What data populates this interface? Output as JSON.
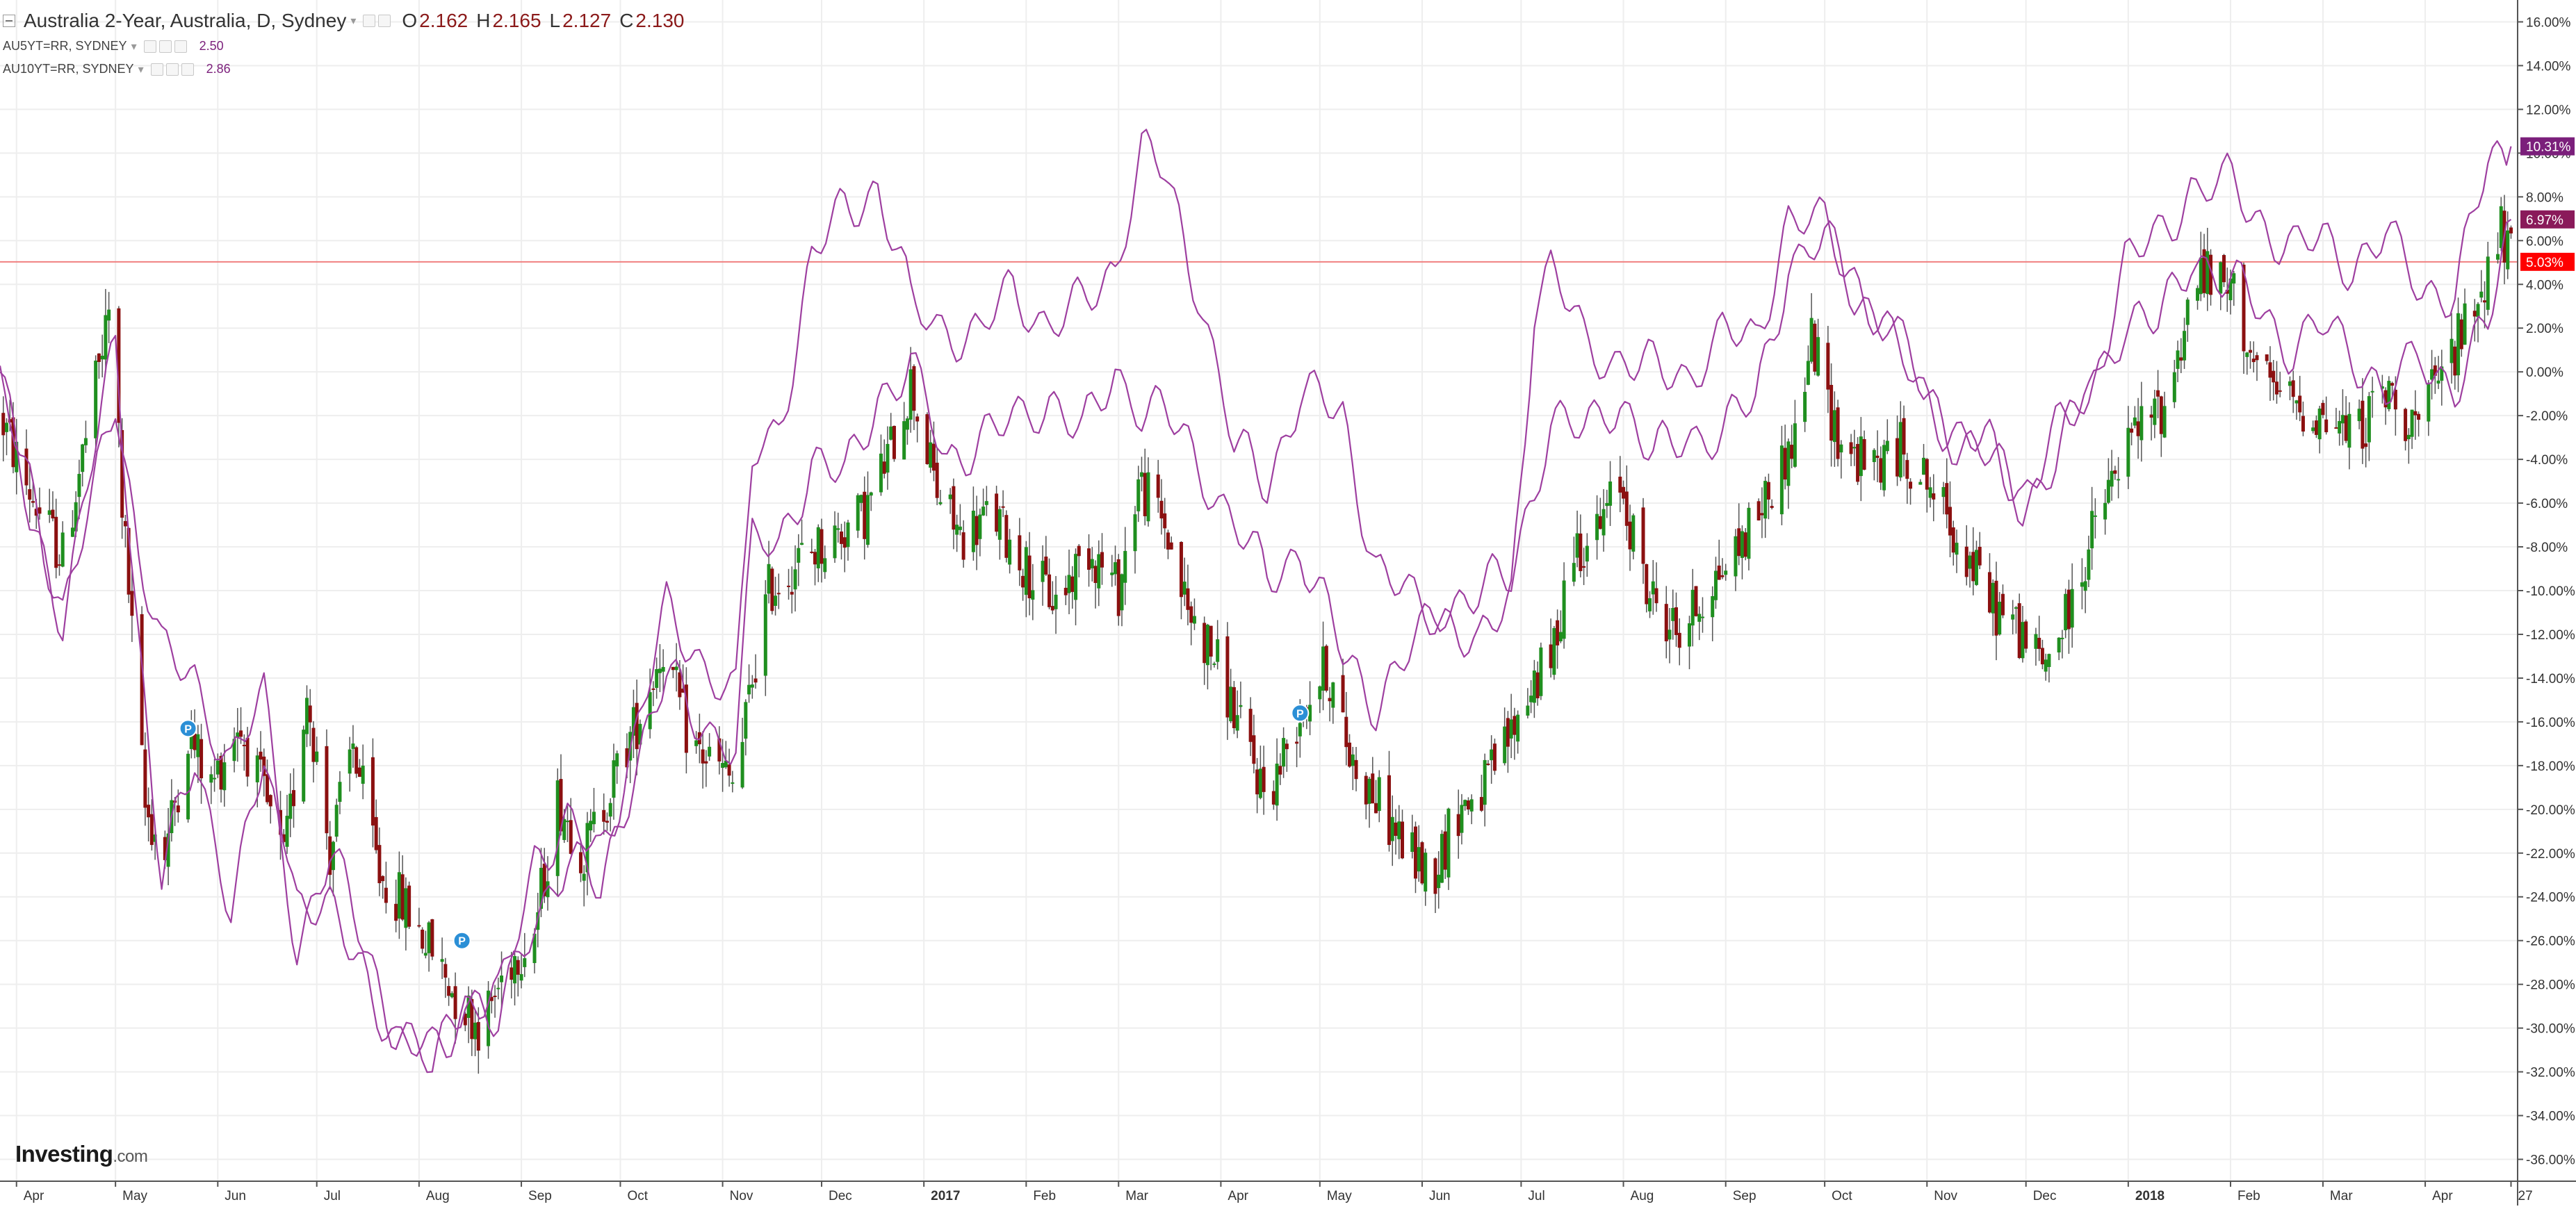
{
  "legend": {
    "main_title": "Australia 2-Year, Australia, D, Sydney",
    "open_key": "O",
    "open_val": "2.162",
    "high_key": "H",
    "high_val": "2.165",
    "low_key": "L",
    "low_val": "2.127",
    "close_key": "C",
    "close_val": "2.130",
    "sub1_title": "AU5YT=RR, SYDNEY",
    "sub1_val": "2.50",
    "sub2_title": "AU10YT=RR, SYDNEY",
    "sub2_val": "2.86"
  },
  "branding": {
    "logo_main": "Investing",
    "logo_suffix": ".com"
  },
  "colors": {
    "up": "#1f8f1f",
    "down": "#8b1010",
    "compare": "#9e3fa0",
    "label_top": "#7b1f7b",
    "label_mid": "#8a1a5a",
    "label_price": "#ff0000",
    "price_line": "#f08080",
    "grid": "#eeeeee",
    "axis_text": "#333333"
  },
  "icons": {
    "event_marker": "p-bubble-icon"
  },
  "chart_data": {
    "type": "line",
    "title": "Australia 2-Year, Australia, D, Sydney",
    "xlabel": "",
    "ylabel": "",
    "ylim": [
      -37,
      17
    ],
    "y_unit": "%",
    "grid": true,
    "x_tick_labels": [
      "Apr",
      "May",
      "Jun",
      "Jul",
      "Aug",
      "Sep",
      "Oct",
      "Nov",
      "Dec",
      "2017",
      "Feb",
      "Mar",
      "Apr",
      "May",
      "Jun",
      "Jul",
      "Aug",
      "Sep",
      "Oct",
      "Nov",
      "Dec",
      "2018",
      "Feb",
      "Mar",
      "Apr",
      "27"
    ],
    "x_tick_dates": [
      "2016-04-01",
      "2016-05-01",
      "2016-06-01",
      "2016-07-01",
      "2016-08-01",
      "2016-09-01",
      "2016-10-01",
      "2016-11-01",
      "2016-12-01",
      "2017-01-01",
      "2017-02-01",
      "2017-03-01",
      "2017-04-01",
      "2017-05-01",
      "2017-06-01",
      "2017-07-01",
      "2017-08-01",
      "2017-09-01",
      "2017-10-01",
      "2017-11-01",
      "2017-12-01",
      "2018-01-01",
      "2018-02-01",
      "2018-03-01",
      "2018-04-01",
      "2018-04-27"
    ],
    "y_ticks": [
      16,
      14,
      12,
      10,
      8,
      6,
      4,
      2,
      0,
      -2,
      -4,
      -6,
      -8,
      -10,
      -12,
      -14,
      -16,
      -18,
      -20,
      -22,
      -24,
      -26,
      -28,
      -30,
      -32,
      -34,
      -36
    ],
    "y_tick_labels": [
      "16.00%",
      "14.00%",
      "12.00%",
      "10.00%",
      "8.00%",
      "6.00%",
      "4.00%",
      "2.00%",
      "0.00%",
      "-2.00%",
      "-4.00%",
      "-6.00%",
      "-8.00%",
      "-10.00%",
      "-12.00%",
      "-14.00%",
      "-16.00%",
      "-18.00%",
      "-20.00%",
      "-22.00%",
      "-24.00%",
      "-26.00%",
      "-28.00%",
      "-30.00%",
      "-32.00%",
      "-34.00%",
      "-36.00%"
    ],
    "last_value_labels": [
      {
        "value": 10.31,
        "text": "10.31%",
        "color": "#7b1f7b"
      },
      {
        "value": 6.97,
        "text": "6.97%",
        "color": "#8a1a5a"
      },
      {
        "value": 5.03,
        "text": "5.03%",
        "color": "#ff0000"
      }
    ],
    "price_line_value": 5.03,
    "event_markers": [
      {
        "date": "2016-05-23",
        "value": -16.3,
        "label": "P"
      },
      {
        "date": "2016-08-14",
        "value": -26.0,
        "label": "P"
      },
      {
        "date": "2017-04-25",
        "value": -15.6,
        "label": "P"
      }
    ],
    "candles_series": {
      "name": "Australia 2-Year",
      "anchors": [
        [
          "2016-03-27",
          -2.0
        ],
        [
          "2016-04-05",
          -5.5
        ],
        [
          "2016-04-15",
          -8.5
        ],
        [
          "2016-04-24",
          -1.5
        ],
        [
          "2016-04-30",
          3.5
        ],
        [
          "2016-05-03",
          -6.0
        ],
        [
          "2016-05-10",
          -20.0
        ],
        [
          "2016-05-16",
          -22.0
        ],
        [
          "2016-05-23",
          -16.5
        ],
        [
          "2016-05-30",
          -19.0
        ],
        [
          "2016-06-07",
          -16.0
        ],
        [
          "2016-06-14",
          -19.0
        ],
        [
          "2016-06-21",
          -22.5
        ],
        [
          "2016-06-28",
          -14.5
        ],
        [
          "2016-07-05",
          -22.0
        ],
        [
          "2016-07-12",
          -17.0
        ],
        [
          "2016-07-20",
          -23.0
        ],
        [
          "2016-07-28",
          -24.5
        ],
        [
          "2016-08-05",
          -26.5
        ],
        [
          "2016-08-12",
          -28.5
        ],
        [
          "2016-08-20",
          -30.0
        ],
        [
          "2016-08-28",
          -27.0
        ],
        [
          "2016-09-05",
          -25.5
        ],
        [
          "2016-09-12",
          -19.5
        ],
        [
          "2016-09-20",
          -22.0
        ],
        [
          "2016-09-28",
          -19.0
        ],
        [
          "2016-10-06",
          -16.0
        ],
        [
          "2016-10-14",
          -12.5
        ],
        [
          "2016-10-22",
          -17.0
        ],
        [
          "2016-10-30",
          -18.0
        ],
        [
          "2016-11-05",
          -19.0
        ],
        [
          "2016-11-10",
          -14.0
        ],
        [
          "2016-11-15",
          -10.0
        ],
        [
          "2016-11-25",
          -8.5
        ],
        [
          "2016-12-05",
          -7.5
        ],
        [
          "2016-12-14",
          -6.5
        ],
        [
          "2016-12-22",
          -3.5
        ],
        [
          "2016-12-28",
          -0.5
        ],
        [
          "2017-01-05",
          -5.5
        ],
        [
          "2017-01-12",
          -7.5
        ],
        [
          "2017-01-22",
          -6.5
        ],
        [
          "2017-02-01",
          -9.0
        ],
        [
          "2017-02-10",
          -10.5
        ],
        [
          "2017-02-20",
          -8.0
        ],
        [
          "2017-03-01",
          -10.0
        ],
        [
          "2017-03-07",
          -5.0
        ],
        [
          "2017-03-15",
          -7.0
        ],
        [
          "2017-03-22",
          -11.0
        ],
        [
          "2017-03-30",
          -13.0
        ],
        [
          "2017-04-06",
          -16.0
        ],
        [
          "2017-04-15",
          -19.5
        ],
        [
          "2017-04-25",
          -15.5
        ],
        [
          "2017-05-03",
          -13.5
        ],
        [
          "2017-05-10",
          -17.5
        ],
        [
          "2017-05-20",
          -20.0
        ],
        [
          "2017-05-28",
          -22.0
        ],
        [
          "2017-06-04",
          -23.0
        ],
        [
          "2017-06-12",
          -20.0
        ],
        [
          "2017-06-20",
          -19.0
        ],
        [
          "2017-06-28",
          -16.5
        ],
        [
          "2017-07-05",
          -14.0
        ],
        [
          "2017-07-10",
          -13.5
        ],
        [
          "2017-07-16",
          -8.0
        ],
        [
          "2017-07-24",
          -7.5
        ],
        [
          "2017-07-31",
          -5.0
        ],
        [
          "2017-08-08",
          -10.0
        ],
        [
          "2017-08-18",
          -12.0
        ],
        [
          "2017-08-26",
          -10.0
        ],
        [
          "2017-09-05",
          -8.0
        ],
        [
          "2017-09-14",
          -5.5
        ],
        [
          "2017-09-22",
          -3.0
        ],
        [
          "2017-09-27",
          1.5
        ],
        [
          "2017-10-05",
          -3.0
        ],
        [
          "2017-10-14",
          -4.5
        ],
        [
          "2017-10-24",
          -3.5
        ],
        [
          "2017-11-01",
          -5.0
        ],
        [
          "2017-11-10",
          -7.5
        ],
        [
          "2017-11-20",
          -10.5
        ],
        [
          "2017-11-30",
          -12.0
        ],
        [
          "2017-12-06",
          -13.5
        ],
        [
          "2017-12-14",
          -11.0
        ],
        [
          "2017-12-22",
          -7.0
        ],
        [
          "2018-01-02",
          -3.0
        ],
        [
          "2018-01-12",
          -1.5
        ],
        [
          "2018-01-22",
          4.5
        ],
        [
          "2018-02-02",
          3.5
        ],
        [
          "2018-02-10",
          -0.5
        ],
        [
          "2018-02-20",
          -1.5
        ],
        [
          "2018-03-01",
          -2.0
        ],
        [
          "2018-03-10",
          -3.0
        ],
        [
          "2018-03-20",
          -1.0
        ],
        [
          "2018-03-30",
          -2.5
        ],
        [
          "2018-04-08",
          0.5
        ],
        [
          "2018-04-16",
          3.0
        ],
        [
          "2018-04-24",
          6.5
        ],
        [
          "2018-04-27",
          5.03
        ]
      ]
    },
    "series": [
      {
        "name": "AU5YT=RR, SYDNEY",
        "x": [
          "2016-03-27",
          "2016-04-05",
          "2016-04-15",
          "2016-04-24",
          "2016-05-01",
          "2016-05-08",
          "2016-05-15",
          "2016-05-25",
          "2016-06-05",
          "2016-06-15",
          "2016-06-25",
          "2016-07-05",
          "2016-07-15",
          "2016-07-25",
          "2016-08-05",
          "2016-08-15",
          "2016-08-25",
          "2016-09-05",
          "2016-09-15",
          "2016-09-25",
          "2016-10-05",
          "2016-10-15",
          "2016-10-25",
          "2016-11-05",
          "2016-11-10",
          "2016-11-18",
          "2016-11-28",
          "2016-12-08",
          "2016-12-18",
          "2016-12-28",
          "2017-01-08",
          "2017-01-18",
          "2017-01-28",
          "2017-02-08",
          "2017-02-18",
          "2017-02-28",
          "2017-03-08",
          "2017-03-15",
          "2017-03-25",
          "2017-04-05",
          "2017-04-15",
          "2017-04-25",
          "2017-05-08",
          "2017-05-18",
          "2017-05-28",
          "2017-06-08",
          "2017-06-18",
          "2017-06-28",
          "2017-07-05",
          "2017-07-10",
          "2017-07-20",
          "2017-07-31",
          "2017-08-10",
          "2017-08-20",
          "2017-08-31",
          "2017-09-10",
          "2017-09-20",
          "2017-10-01",
          "2017-10-10",
          "2017-10-20",
          "2017-10-31",
          "2017-11-10",
          "2017-11-20",
          "2017-11-30",
          "2017-12-10",
          "2017-12-20",
          "2017-12-31",
          "2018-01-10",
          "2018-01-20",
          "2018-01-31",
          "2018-02-10",
          "2018-02-20",
          "2018-03-01",
          "2018-03-10",
          "2018-03-20",
          "2018-03-31",
          "2018-04-10",
          "2018-04-20",
          "2018-04-27"
        ],
        "values": [
          0.0,
          -7.0,
          -11.0,
          -4.0,
          1.0,
          -12.0,
          -23.0,
          -18.0,
          -24.0,
          -18.0,
          -26.0,
          -22.0,
          -26.0,
          -30.0,
          -32.0,
          -28.0,
          -30.0,
          -25.0,
          -22.0,
          -24.0,
          -18.0,
          -14.0,
          -16.0,
          -17.0,
          -8.0,
          -8.0,
          -4.0,
          -5.0,
          -1.0,
          0.0,
          -4.0,
          -3.0,
          -2.5,
          -1.0,
          -3.0,
          0.0,
          -1.5,
          -2.0,
          -4.0,
          -7.0,
          -9.5,
          -8.0,
          -13.0,
          -15.0,
          -13.0,
          -10.5,
          -10.0,
          -9.5,
          -5.0,
          -2.0,
          -3.0,
          -1.0,
          -4.0,
          -3.0,
          -2.5,
          -1.5,
          5.0,
          6.0,
          3.5,
          2.5,
          -1.0,
          -3.0,
          -4.0,
          -6.0,
          -4.0,
          -1.0,
          2.5,
          2.0,
          5.5,
          4.0,
          3.0,
          1.0,
          2.0,
          1.0,
          -1.0,
          0.5,
          -0.5,
          2.0,
          6.97
        ]
      },
      {
        "name": "AU10YT=RR, SYDNEY",
        "x": [
          "2016-03-27",
          "2016-04-05",
          "2016-04-15",
          "2016-04-24",
          "2016-05-01",
          "2016-05-08",
          "2016-05-15",
          "2016-05-25",
          "2016-06-05",
          "2016-06-15",
          "2016-06-25",
          "2016-07-05",
          "2016-07-15",
          "2016-07-25",
          "2016-08-05",
          "2016-08-15",
          "2016-08-25",
          "2016-09-05",
          "2016-09-15",
          "2016-09-25",
          "2016-10-05",
          "2016-10-15",
          "2016-10-25",
          "2016-11-05",
          "2016-11-10",
          "2016-11-18",
          "2016-11-28",
          "2016-12-08",
          "2016-12-18",
          "2016-12-28",
          "2017-01-08",
          "2017-01-18",
          "2017-01-28",
          "2017-02-08",
          "2017-02-18",
          "2017-02-28",
          "2017-03-08",
          "2017-03-15",
          "2017-03-25",
          "2017-04-05",
          "2017-04-15",
          "2017-04-25",
          "2017-05-08",
          "2017-05-18",
          "2017-05-28",
          "2017-06-08",
          "2017-06-18",
          "2017-06-28",
          "2017-07-05",
          "2017-07-10",
          "2017-07-20",
          "2017-07-31",
          "2017-08-10",
          "2017-08-20",
          "2017-08-31",
          "2017-09-10",
          "2017-09-20",
          "2017-10-01",
          "2017-10-10",
          "2017-10-20",
          "2017-10-31",
          "2017-11-10",
          "2017-11-20",
          "2017-11-30",
          "2017-12-10",
          "2017-12-20",
          "2017-12-31",
          "2018-01-10",
          "2018-01-20",
          "2018-01-31",
          "2018-02-10",
          "2018-02-20",
          "2018-03-01",
          "2018-03-10",
          "2018-03-20",
          "2018-03-31",
          "2018-04-10",
          "2018-04-20",
          "2018-04-27"
        ],
        "values": [
          -1.0,
          -5.0,
          -11.0,
          -6.0,
          -1.0,
          -8.0,
          -13.0,
          -14.0,
          -18.0,
          -15.0,
          -24.0,
          -25.0,
          -27.0,
          -31.0,
          -31.0,
          -29.0,
          -29.0,
          -22.0,
          -21.0,
          -22.0,
          -17.0,
          -11.0,
          -13.0,
          -15.0,
          -4.0,
          -2.5,
          5.0,
          7.5,
          8.5,
          3.0,
          2.0,
          1.5,
          4.0,
          2.0,
          3.0,
          5.0,
          10.0,
          9.0,
          4.0,
          -3.5,
          -5.0,
          -1.0,
          -2.0,
          -9.0,
          -10.5,
          -11.0,
          -13.0,
          -10.0,
          3.0,
          4.5,
          1.5,
          0.5,
          0.0,
          0.0,
          1.5,
          1.5,
          7.0,
          6.5,
          4.5,
          1.5,
          -1.0,
          -3.0,
          -3.5,
          -5.5,
          -3.0,
          -1.0,
          5.0,
          6.0,
          8.5,
          8.5,
          7.0,
          5.5,
          6.0,
          5.0,
          6.0,
          4.0,
          3.5,
          9.5,
          10.31
        ]
      }
    ]
  }
}
